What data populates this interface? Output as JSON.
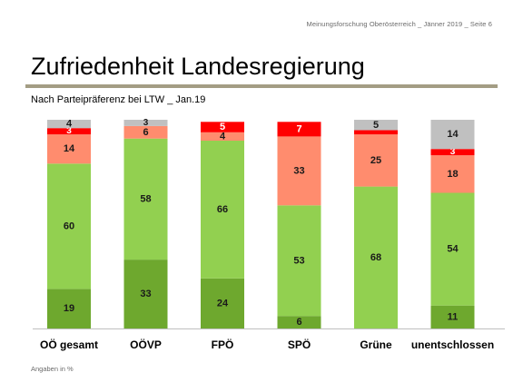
{
  "header": {
    "meta": "Meinungsforschung Oberösterreich _ Jänner 2019 _ Seite 6",
    "title": "Zufriedenheit Landesregierung",
    "subtitle": "Nach Parteipräferenz bei LTW _ Jan.19"
  },
  "footnote": "Angaben in %",
  "colors": {
    "dark_green": "#6ea82e",
    "light_green": "#92d050",
    "salmon": "#ff8c6e",
    "red": "#ff0000",
    "grey": "#c0c0c0",
    "rule": "#a39d84"
  },
  "chart_data": {
    "type": "bar",
    "stacked": true,
    "orientation": "vertical",
    "categories": [
      "OÖ gesamt",
      "OÖVP",
      "FPÖ",
      "SPÖ",
      "Grüne",
      "unentschlossen"
    ],
    "series": [
      {
        "color": "#6ea82e",
        "values": [
          19,
          33,
          24,
          6,
          0,
          11
        ]
      },
      {
        "color": "#92d050",
        "values": [
          60,
          58,
          66,
          53,
          68,
          54
        ]
      },
      {
        "color": "#ff8c6e",
        "values": [
          14,
          6,
          4,
          33,
          25,
          18
        ]
      },
      {
        "color": "#ff0000",
        "values": [
          3,
          0,
          5,
          7,
          2,
          3
        ]
      },
      {
        "color": "#c0c0c0",
        "values": [
          4,
          3,
          0,
          0,
          5,
          14
        ]
      }
    ],
    "data_labels": [
      [
        "19",
        "60",
        "14",
        "3",
        "4"
      ],
      [
        "33",
        "58",
        "6",
        "",
        "3"
      ],
      [
        "24",
        "66",
        "4",
        "5",
        ""
      ],
      [
        "6",
        "53",
        "33",
        "7",
        ""
      ],
      [
        "",
        "68",
        "25",
        "",
        "5"
      ],
      [
        "11",
        "54",
        "18",
        "3",
        "14"
      ]
    ],
    "ylim": [
      0,
      100
    ],
    "grid": false,
    "legend": "none"
  }
}
